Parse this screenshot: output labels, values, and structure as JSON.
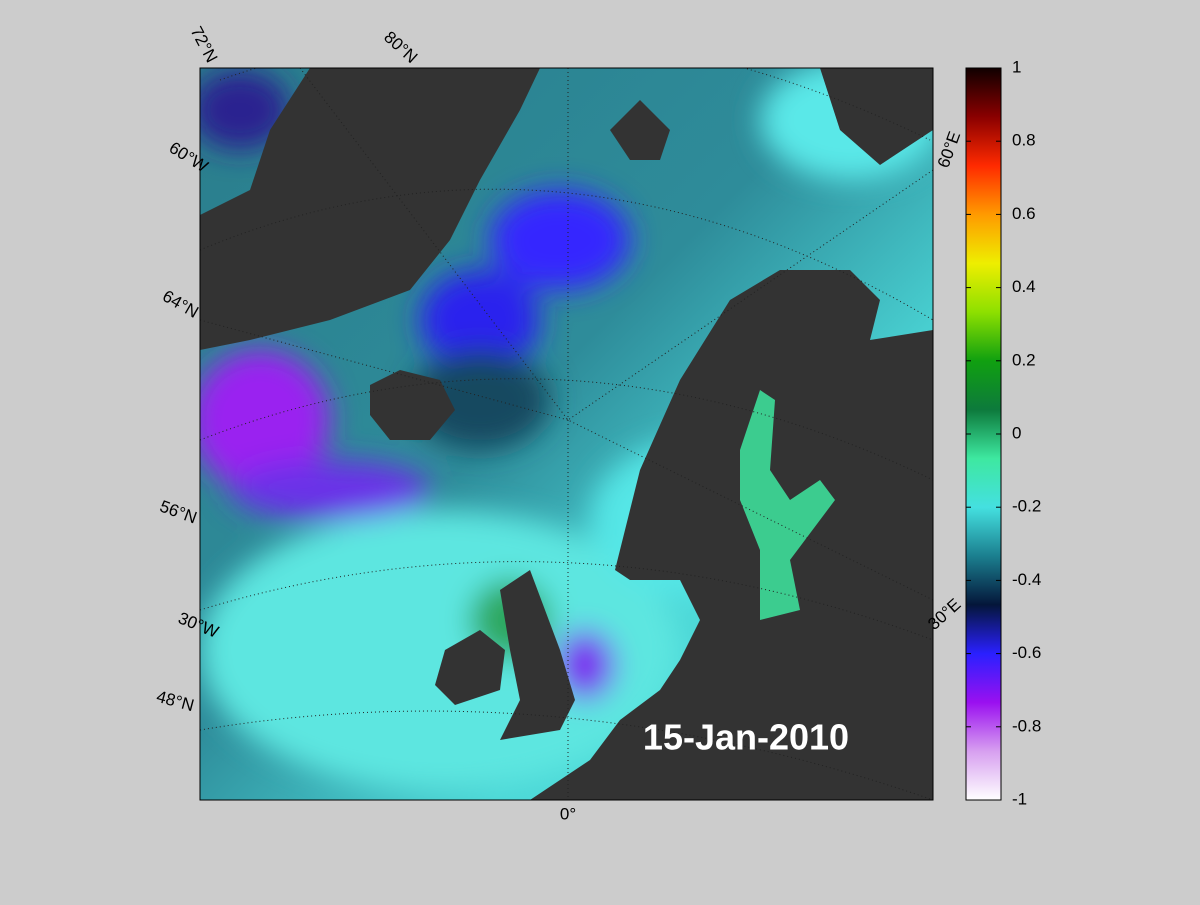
{
  "map": {
    "date_label": "15-Jan-2010",
    "graticule_labels": [
      "72°N",
      "80°N",
      "60°W",
      "64°N",
      "56°N",
      "30°W",
      "48°N",
      "0°",
      "60°E",
      "30°E"
    ],
    "colorbar": {
      "clim": [
        -1,
        1
      ],
      "ticks": [
        -1,
        -0.8,
        -0.6,
        -0.4,
        -0.2,
        0,
        0.2,
        0.4,
        0.6,
        0.8,
        1
      ],
      "colormap": [
        "#ffffff",
        "#d79ff0",
        "#9a10f0",
        "#2a20ff",
        "#04163a",
        "#1b7f8f",
        "#44e0e0",
        "#3ee8a0",
        "#0d7a3c",
        "#10a010",
        "#8ee000",
        "#eeee00",
        "#ff9a00",
        "#ff2a00",
        "#8a0000",
        "#100000"
      ]
    }
  }
}
